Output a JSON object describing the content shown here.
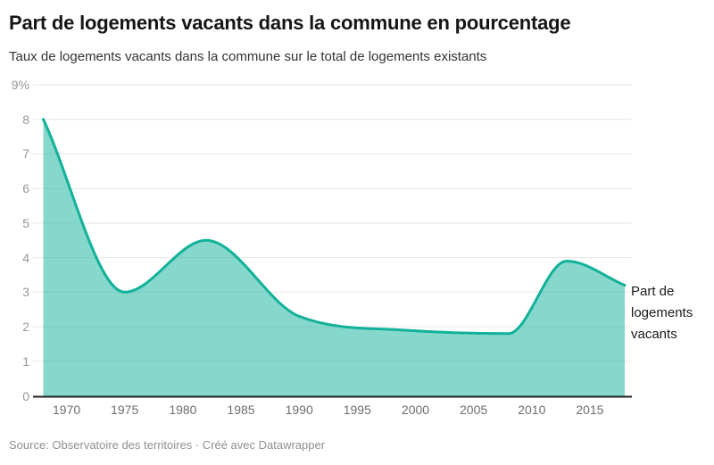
{
  "header": {
    "title": "Part de logements vacants dans la commune en pourcentage",
    "subtitle": "Taux de logements vacants dans la commune sur le total de logements existants"
  },
  "chart_data": {
    "type": "area",
    "title": "Part de logements vacants dans la commune en pourcentage",
    "subtitle": "Taux de logements vacants dans la commune sur le total de logements existants",
    "series": [
      {
        "name": "Part de logements vacants",
        "x": [
          1968,
          1975,
          1982,
          1990,
          1999,
          2008,
          2013,
          2018
        ],
        "values": [
          8.0,
          3.0,
          4.5,
          2.3,
          1.9,
          1.8,
          3.9,
          3.2
        ]
      }
    ],
    "xlabel": "",
    "ylabel": "",
    "xlim": [
      1968,
      2018
    ],
    "ylim": [
      0,
      9
    ],
    "x_ticks": [
      1970,
      1975,
      1980,
      1985,
      1990,
      1995,
      2000,
      2005,
      2010,
      2015
    ],
    "y_ticks": [
      {
        "value": 0,
        "label": "0"
      },
      {
        "value": 1,
        "label": "1"
      },
      {
        "value": 2,
        "label": "2"
      },
      {
        "value": 3,
        "label": "3"
      },
      {
        "value": 4,
        "label": "4"
      },
      {
        "value": 5,
        "label": "5"
      },
      {
        "value": 6,
        "label": "6"
      },
      {
        "value": 7,
        "label": "7"
      },
      {
        "value": 8,
        "label": "8"
      },
      {
        "value": 9,
        "label": "9%"
      }
    ],
    "grid": true,
    "curve": "monotone",
    "legend_position": "right of line end",
    "colors": {
      "line": "#12b19a",
      "fill": "rgba(16,178,154,0.5)",
      "grid": "#e7e7e7",
      "axis": "#1f1f1f"
    }
  },
  "footer": {
    "source_text": "Source: Observatoire des territoires · Créé avec Datawrapper"
  }
}
